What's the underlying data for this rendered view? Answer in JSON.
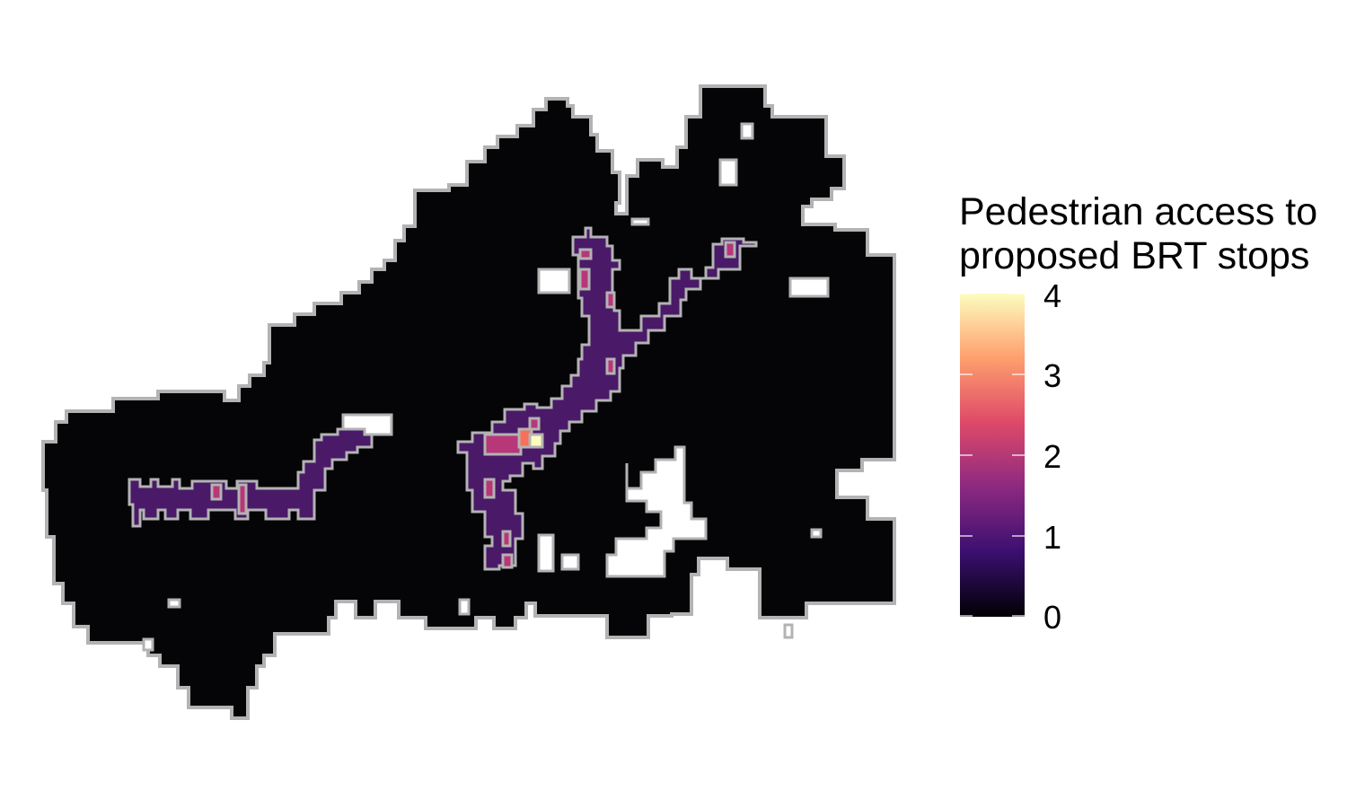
{
  "legend": {
    "title_line1": "Pedestrian access to",
    "title_line2": "proposed BRT stops",
    "ticks": [
      "4",
      "3",
      "2",
      "1",
      "0"
    ],
    "range": [
      0,
      4
    ],
    "colors": [
      "#000004",
      "#3b0f70",
      "#8c2981",
      "#de4968",
      "#fe9f6d",
      "#fcfdbf"
    ]
  },
  "map": {
    "background_color": "#050508",
    "border_color": "#b3b3b3",
    "categories": [
      {
        "value": 0,
        "color": "#050508"
      },
      {
        "value": 1,
        "color": "#4a1a68"
      },
      {
        "value": 2,
        "color": "#b73779"
      },
      {
        "value": 3,
        "color": "#f7705c"
      },
      {
        "value": 4,
        "color": "#fcfdbf"
      }
    ]
  }
}
